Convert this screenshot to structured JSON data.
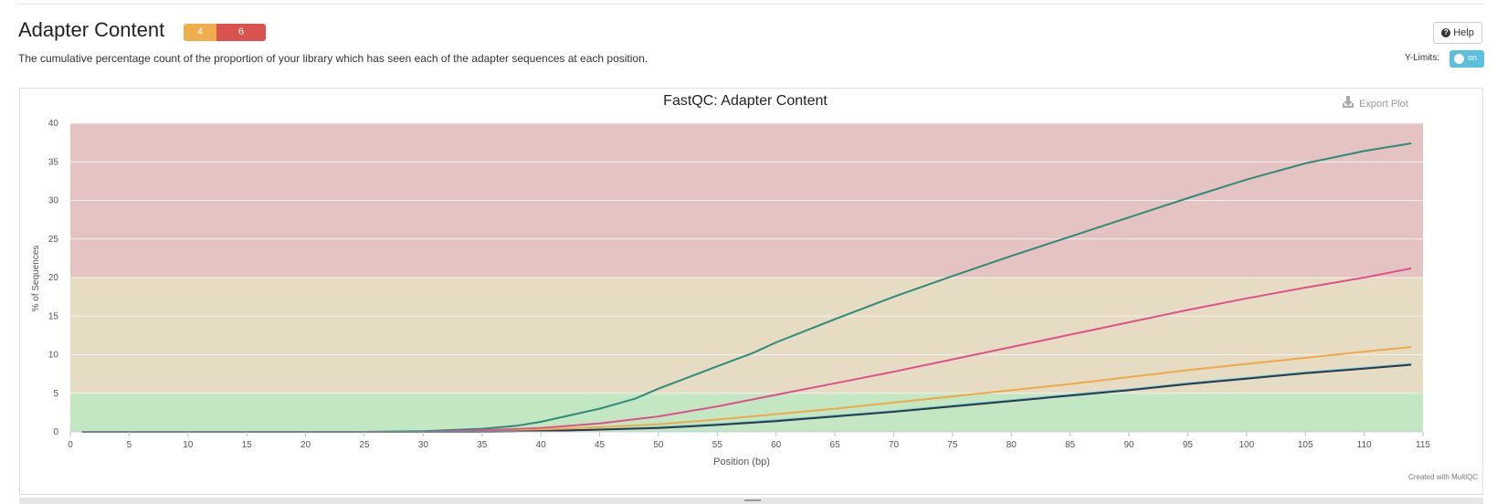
{
  "header": {
    "title": "Adapter Content",
    "badge_warn": "4",
    "badge_fail": "6",
    "description": "The cumulative percentage count of the proportion of your library which has seen each of the adapter sequences at each position.",
    "help_label": "Help",
    "ylimits_label": "Y-Limits:",
    "toggle_label": "on"
  },
  "chart": {
    "export_label": "Export Plot",
    "credit": "Created with MultiQC"
  },
  "colors": {
    "fail_band": "#e6c3c3",
    "warn_band": "#e6dcc4",
    "pass_band": "#c3e6c3"
  },
  "chart_data": {
    "type": "line",
    "title": "FastQC: Adapter Content",
    "xlabel": "Position (bp)",
    "ylabel": "% of Sequences",
    "xlim": [
      0,
      115
    ],
    "ylim": [
      0,
      40
    ],
    "xticks": [
      0,
      5,
      10,
      15,
      20,
      25,
      30,
      35,
      40,
      45,
      50,
      55,
      60,
      65,
      70,
      75,
      80,
      85,
      90,
      95,
      100,
      105,
      110,
      115
    ],
    "yticks": [
      0,
      5,
      10,
      15,
      20,
      25,
      30,
      35,
      40
    ],
    "bands": [
      {
        "from": 20,
        "to": 40,
        "status": "fail"
      },
      {
        "from": 5,
        "to": 20,
        "status": "warn"
      },
      {
        "from": 0,
        "to": 5,
        "status": "pass"
      }
    ],
    "series": [
      {
        "color": "#2e8b7a",
        "points": [
          [
            1,
            0
          ],
          [
            25,
            0
          ],
          [
            30,
            0.1
          ],
          [
            35,
            0.4
          ],
          [
            38,
            0.8
          ],
          [
            40,
            1.3
          ],
          [
            45,
            3.0
          ],
          [
            48,
            4.3
          ],
          [
            50,
            5.6
          ],
          [
            55,
            8.5
          ],
          [
            58,
            10.2
          ],
          [
            60,
            11.6
          ],
          [
            65,
            14.6
          ],
          [
            70,
            17.5
          ],
          [
            75,
            20.2
          ],
          [
            80,
            22.8
          ],
          [
            85,
            25.3
          ],
          [
            90,
            27.8
          ],
          [
            95,
            30.3
          ],
          [
            100,
            32.7
          ],
          [
            105,
            34.8
          ],
          [
            110,
            36.4
          ],
          [
            114,
            37.4
          ]
        ]
      },
      {
        "color": "#e0508a",
        "points": [
          [
            1,
            0
          ],
          [
            30,
            0
          ],
          [
            35,
            0.2
          ],
          [
            40,
            0.5
          ],
          [
            45,
            1.1
          ],
          [
            50,
            2.0
          ],
          [
            55,
            3.3
          ],
          [
            60,
            4.8
          ],
          [
            65,
            6.3
          ],
          [
            70,
            7.8
          ],
          [
            75,
            9.4
          ],
          [
            80,
            11.0
          ],
          [
            85,
            12.6
          ],
          [
            90,
            14.2
          ],
          [
            95,
            15.8
          ],
          [
            100,
            17.3
          ],
          [
            105,
            18.7
          ],
          [
            110,
            20.0
          ],
          [
            114,
            21.2
          ]
        ]
      },
      {
        "color": "#f0a848",
        "points": [
          [
            1,
            0
          ],
          [
            35,
            0
          ],
          [
            40,
            0.3
          ],
          [
            45,
            0.6
          ],
          [
            50,
            1.0
          ],
          [
            55,
            1.6
          ],
          [
            60,
            2.3
          ],
          [
            65,
            3.0
          ],
          [
            70,
            3.8
          ],
          [
            75,
            4.6
          ],
          [
            80,
            5.4
          ],
          [
            85,
            6.2
          ],
          [
            90,
            7.1
          ],
          [
            95,
            8.0
          ],
          [
            100,
            8.8
          ],
          [
            105,
            9.6
          ],
          [
            110,
            10.4
          ],
          [
            114,
            11.0
          ]
        ]
      },
      {
        "color": "#6cc8d8",
        "points": [
          [
            1,
            0
          ],
          [
            35,
            0
          ],
          [
            40,
            0.1
          ],
          [
            45,
            0.3
          ],
          [
            50,
            0.6
          ],
          [
            55,
            1.0
          ],
          [
            60,
            1.5
          ],
          [
            65,
            2.1
          ],
          [
            70,
            2.7
          ],
          [
            75,
            3.4
          ],
          [
            80,
            4.1
          ],
          [
            85,
            4.8
          ],
          [
            90,
            5.5
          ],
          [
            95,
            6.3
          ],
          [
            100,
            7.0
          ],
          [
            105,
            7.7
          ],
          [
            110,
            8.3
          ],
          [
            114,
            8.8
          ]
        ]
      },
      {
        "color": "#2b3a4a",
        "points": [
          [
            1,
            0
          ],
          [
            35,
            0
          ],
          [
            40,
            0.1
          ],
          [
            45,
            0.3
          ],
          [
            50,
            0.5
          ],
          [
            55,
            0.9
          ],
          [
            60,
            1.4
          ],
          [
            65,
            2.0
          ],
          [
            70,
            2.6
          ],
          [
            75,
            3.3
          ],
          [
            80,
            4.0
          ],
          [
            85,
            4.7
          ],
          [
            90,
            5.4
          ],
          [
            95,
            6.2
          ],
          [
            100,
            6.9
          ],
          [
            105,
            7.6
          ],
          [
            110,
            8.2
          ],
          [
            114,
            8.7
          ]
        ]
      }
    ]
  }
}
